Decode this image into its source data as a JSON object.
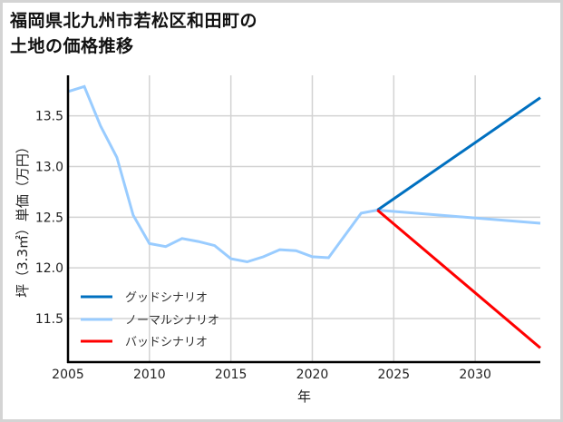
{
  "title": {
    "line1": "福岡県北九州市若松区和田町の",
    "line2": "土地の価格推移"
  },
  "colors": {
    "good": "#0070c0",
    "normal": "#99ccff",
    "bad": "#ff0000",
    "grid": "#d3d3d3",
    "axis": "#000000",
    "border": "#d4d4d4"
  },
  "chart_data": {
    "type": "line",
    "title": "福岡県北九州市若松区和田町の土地の価格推移",
    "xlabel": "年",
    "ylabel": "坪（3.3㎡）単価（万円）",
    "xlim": [
      2005,
      2034
    ],
    "ylim": [
      11.07,
      13.9
    ],
    "x_ticks": [
      2005,
      2010,
      2015,
      2020,
      2025,
      2030
    ],
    "x_tick_labels": [
      "2005",
      "2010",
      "2015",
      "2020",
      "2025",
      "2030"
    ],
    "y_ticks": [
      11.5,
      12.0,
      12.5,
      13.0,
      13.5
    ],
    "y_tick_labels": [
      "11.5",
      "12.0",
      "12.5",
      "13.0",
      "13.5"
    ],
    "grid": true,
    "legend_position": "lower left",
    "series": [
      {
        "name": "グッドシナリオ",
        "color": "#0070c0",
        "x": [
          2024,
          2034
        ],
        "values": [
          12.57,
          13.68
        ]
      },
      {
        "name": "ノーマルシナリオ",
        "color": "#99ccff",
        "x": [
          2005,
          2006,
          2007,
          2008,
          2009,
          2010,
          2011,
          2012,
          2013,
          2014,
          2015,
          2016,
          2017,
          2018,
          2019,
          2020,
          2021,
          2022,
          2023,
          2024,
          2034
        ],
        "values": [
          13.74,
          13.79,
          13.4,
          13.09,
          12.52,
          12.24,
          12.21,
          12.29,
          12.26,
          12.22,
          12.09,
          12.06,
          12.11,
          12.18,
          12.17,
          12.11,
          12.1,
          12.32,
          12.54,
          12.57,
          12.44
        ]
      },
      {
        "name": "バッドシナリオ",
        "color": "#ff0000",
        "x": [
          2024,
          2034
        ],
        "values": [
          12.57,
          11.21
        ]
      }
    ]
  }
}
